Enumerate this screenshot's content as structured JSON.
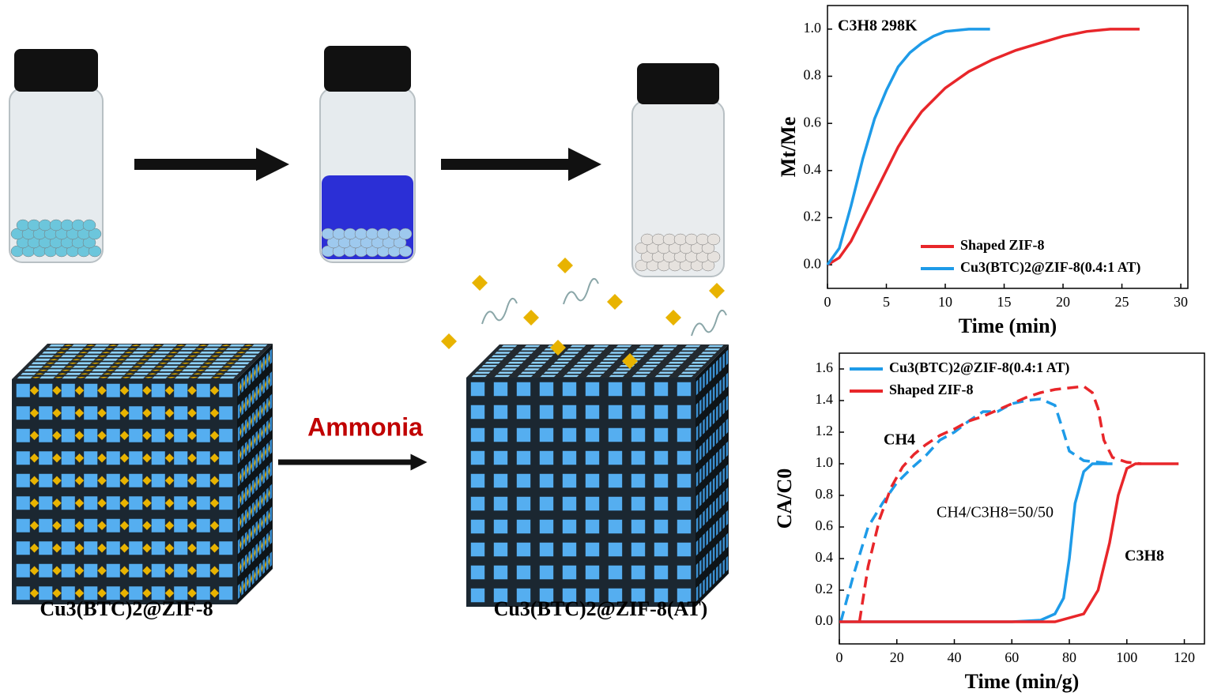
{
  "figure": {
    "labels": [
      "Ammonia",
      "Cu3(BTC)2@ZIF-8",
      "Cu3(BTC)2@ZIF-8(AT)"
    ]
  },
  "chart_data": [
    {
      "type": "line",
      "annotations": [
        "C3H8 298K"
      ],
      "x_label": "Time (min)",
      "y_label": "Mt/Me",
      "xlim": [
        0,
        30.6
      ],
      "xticks": [
        0,
        5,
        10,
        15,
        20,
        25,
        30
      ],
      "ylim": [
        -0.1,
        1.1
      ],
      "yticks": [
        {
          "value": 0,
          "label": "0.0"
        },
        0.2,
        0.4,
        0.6,
        0.8,
        {
          "value": 1,
          "label": "1.0"
        }
      ],
      "grid": false,
      "legend": "lower right",
      "series": [
        {
          "name": "Shaped ZIF-8",
          "color": "#e8262a",
          "x": [
            0,
            1,
            2,
            3,
            4,
            5,
            6,
            7,
            8,
            10,
            12,
            14,
            16,
            18,
            20,
            22,
            24,
            26.5
          ],
          "values": [
            0,
            0.03,
            0.1,
            0.2,
            0.3,
            0.4,
            0.5,
            0.58,
            0.65,
            0.75,
            0.82,
            0.87,
            0.91,
            0.94,
            0.97,
            0.99,
            1.0,
            1.0
          ]
        },
        {
          "name": "Cu3(BTC)2@ZIF-8(0.4:1 AT)",
          "color": "#1e9be8",
          "x": [
            0,
            1,
            2,
            3,
            4,
            5,
            6,
            7,
            8,
            9,
            10,
            12,
            13.8
          ],
          "values": [
            0,
            0.07,
            0.25,
            0.45,
            0.62,
            0.74,
            0.84,
            0.9,
            0.94,
            0.97,
            0.99,
            1.0,
            1.0
          ]
        }
      ]
    },
    {
      "type": "line",
      "annotations": [
        "CH4",
        "CH4/C3H8=50/50",
        "C3H8"
      ],
      "x_label": "Time (min/g)",
      "y_label": "CA/C0",
      "xlim": [
        0,
        127
      ],
      "xticks": [
        0,
        20,
        40,
        60,
        80,
        100,
        120
      ],
      "ylim": [
        -0.14,
        1.7
      ],
      "yticks": [
        {
          "value": 0,
          "label": "0.0"
        },
        0.2,
        0.4,
        0.6,
        0.8,
        {
          "value": 1,
          "label": "1.0"
        },
        1.2,
        1.4,
        1.6
      ],
      "grid": false,
      "legend": "upper left",
      "series": [
        {
          "name": "Cu3(BTC)2@ZIF-8(0.4:1 AT)",
          "color": "#1e9be8",
          "x": [
            0,
            60,
            70,
            75,
            78,
            80,
            82,
            85,
            88,
            95
          ],
          "values": [
            0,
            0,
            0.01,
            0.05,
            0.15,
            0.4,
            0.75,
            0.95,
            1.0,
            1.0
          ],
          "dashed_x": [
            0.5,
            5,
            10,
            15,
            20,
            25,
            30,
            35,
            40,
            45,
            50,
            55,
            60,
            65,
            70,
            75,
            78,
            80,
            85,
            90,
            95
          ],
          "dashed_values": [
            0,
            0.3,
            0.6,
            0.75,
            0.88,
            0.97,
            1.05,
            1.15,
            1.2,
            1.27,
            1.33,
            1.33,
            1.38,
            1.4,
            1.41,
            1.37,
            1.2,
            1.08,
            1.02,
            1.01,
            1.0
          ]
        },
        {
          "name": "Shaped ZIF-8",
          "color": "#e8262a",
          "x": [
            0,
            75,
            85,
            90,
            94,
            97,
            100,
            103,
            118
          ],
          "values": [
            0,
            0,
            0.05,
            0.2,
            0.5,
            0.8,
            0.97,
            1.0,
            1.0
          ],
          "dashed_x": [
            7,
            10,
            14,
            18,
            22,
            26,
            30,
            35,
            40,
            45,
            50,
            55,
            60,
            65,
            70,
            75,
            80,
            85,
            88,
            90,
            92,
            95,
            100,
            105
          ],
          "dashed_values": [
            0,
            0.35,
            0.65,
            0.85,
            0.98,
            1.06,
            1.12,
            1.18,
            1.22,
            1.27,
            1.3,
            1.34,
            1.38,
            1.42,
            1.45,
            1.47,
            1.48,
            1.49,
            1.45,
            1.35,
            1.15,
            1.04,
            1.01,
            1.0
          ]
        }
      ]
    }
  ]
}
